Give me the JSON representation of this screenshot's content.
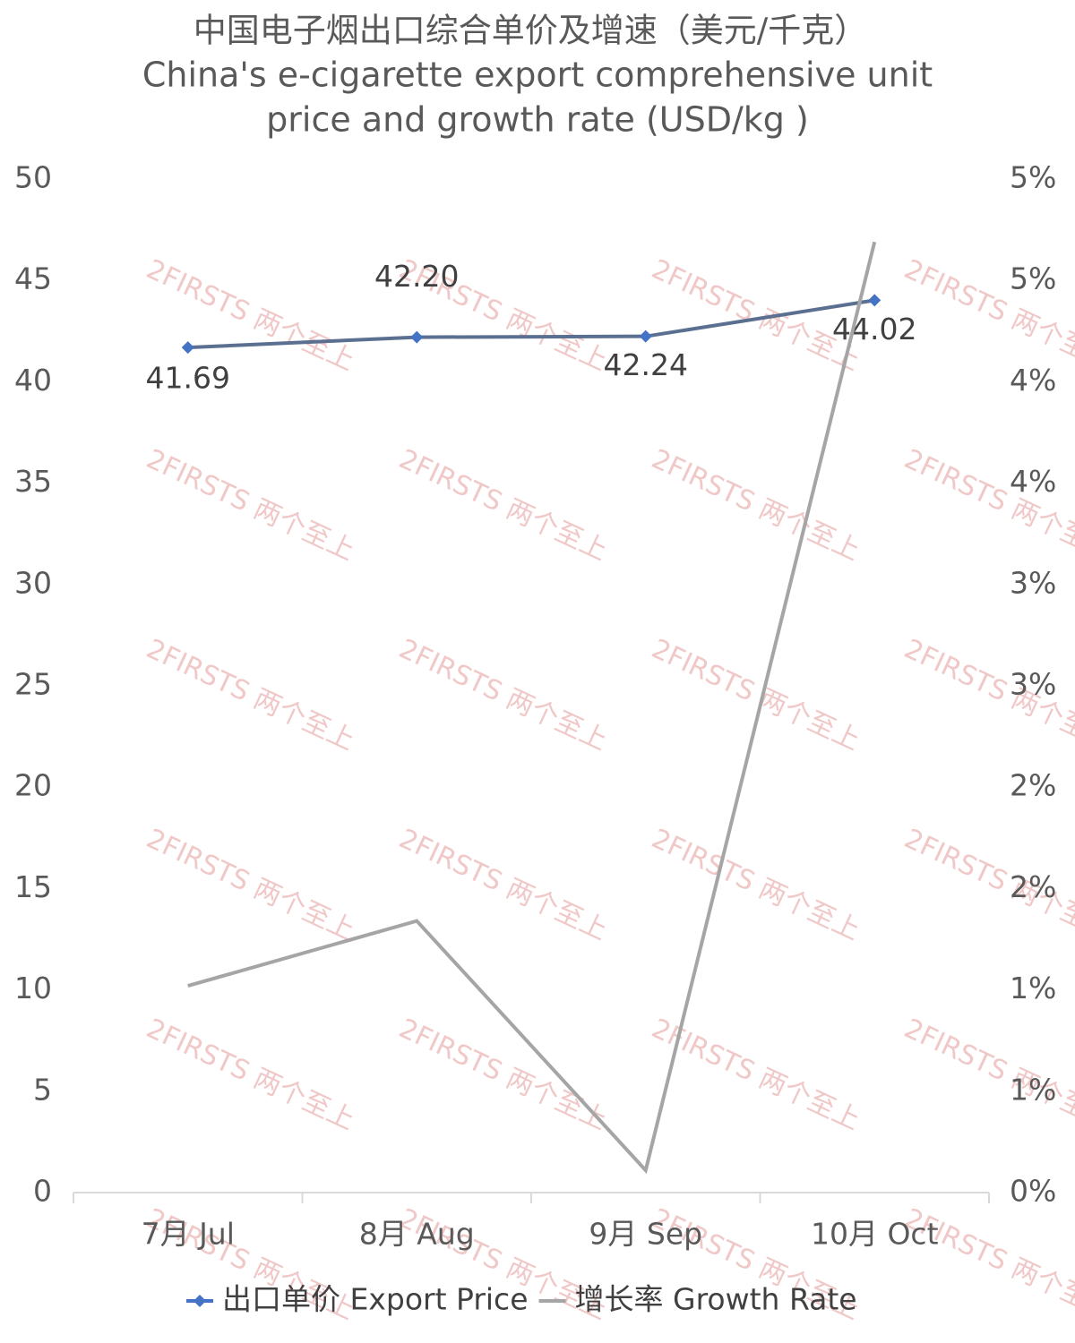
{
  "chart_data": {
    "type": "line",
    "title": "中国电子烟出口综合单价及增速（美元/千克）",
    "subtitle": [
      "China's e-cigarette export comprehensive unit",
      "price and growth rate (USD/kg )"
    ],
    "watermark": "2FIRSTS 两个至上",
    "categories": [
      "7月 Jul",
      "8月 Aug",
      "9月 Sep",
      "10月 Oct"
    ],
    "series": [
      {
        "name": "出口单价 Export Price",
        "color": "#4472c4",
        "line_color": "#5b7090",
        "values": [
          41.69,
          42.2,
          42.24,
          44.02
        ],
        "value_labels": [
          "41.69",
          "42.20",
          "42.24",
          "44.02"
        ]
      },
      {
        "name": "增长率 Growth Rate",
        "color": "#a5a5a5",
        "axis": "y2",
        "values": [
          1.02,
          1.34,
          0.11,
          4.69
        ]
      }
    ],
    "ylim": [
      0,
      50
    ],
    "yticks": [
      0,
      5,
      10,
      15,
      20,
      25,
      30,
      35,
      40,
      45,
      50
    ],
    "y2lim": [
      0,
      5
    ],
    "y2ticks": [
      {
        "value": 0,
        "label": "0%"
      },
      {
        "value": 0.5,
        "label": "1%"
      },
      {
        "value": 1,
        "label": "1%"
      },
      {
        "value": 1.5,
        "label": "2%"
      },
      {
        "value": 2,
        "label": "2%"
      },
      {
        "value": 2.5,
        "label": "3%"
      },
      {
        "value": 3,
        "label": "3%"
      },
      {
        "value": 3.5,
        "label": "4%"
      },
      {
        "value": 4,
        "label": "4%"
      },
      {
        "value": 4.5,
        "label": "5%"
      },
      {
        "value": 5,
        "label": "5%"
      }
    ],
    "grid": false,
    "legend": "bottom"
  }
}
